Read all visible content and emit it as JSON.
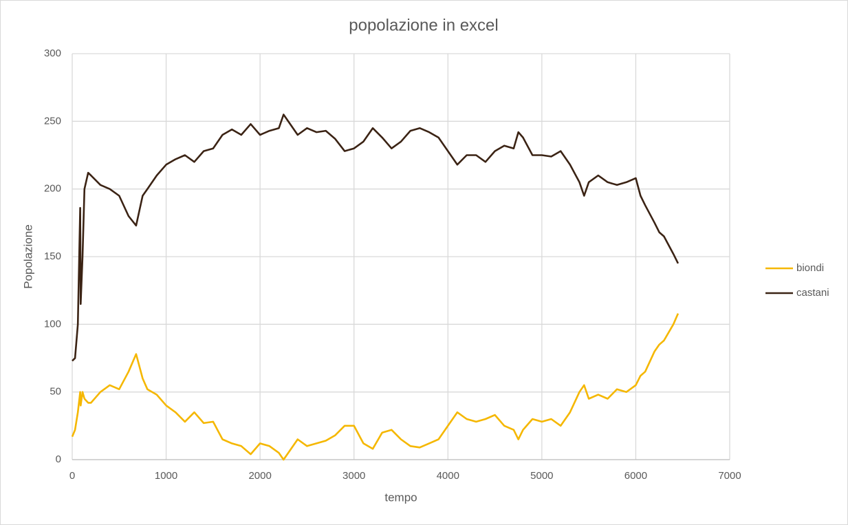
{
  "chart_data": {
    "type": "line",
    "title": "popolazione in excel",
    "x_label": "tempo",
    "y_label": "Popolazione",
    "x": [
      0,
      30,
      60,
      85,
      90,
      110,
      130,
      170,
      200,
      300,
      400,
      500,
      600,
      680,
      750,
      800,
      900,
      1000,
      1100,
      1200,
      1300,
      1400,
      1500,
      1600,
      1700,
      1800,
      1900,
      2000,
      2100,
      2200,
      2250,
      2300,
      2400,
      2500,
      2600,
      2700,
      2800,
      2900,
      3000,
      3100,
      3200,
      3300,
      3400,
      3500,
      3600,
      3700,
      3800,
      3900,
      4000,
      4100,
      4200,
      4300,
      4400,
      4500,
      4600,
      4700,
      4750,
      4800,
      4900,
      5000,
      5100,
      5200,
      5300,
      5400,
      5450,
      5500,
      5600,
      5700,
      5800,
      5900,
      6000,
      6050,
      6100,
      6200,
      6250,
      6300,
      6400,
      6450
    ],
    "series": [
      {
        "name": "biondi",
        "color": "#f5b700",
        "values": [
          17,
          22,
          35,
          50,
          40,
          50,
          45,
          42,
          42,
          50,
          55,
          52,
          65,
          78,
          60,
          52,
          48,
          40,
          35,
          28,
          35,
          27,
          28,
          15,
          12,
          10,
          4,
          12,
          10,
          5,
          0,
          5,
          15,
          10,
          12,
          14,
          18,
          25,
          25,
          12,
          8,
          20,
          22,
          15,
          10,
          9,
          12,
          15,
          25,
          35,
          30,
          28,
          30,
          33,
          25,
          22,
          15,
          22,
          30,
          28,
          30,
          25,
          35,
          50,
          55,
          45,
          48,
          45,
          52,
          50,
          55,
          62,
          65,
          80,
          85,
          88,
          100,
          108
        ]
      },
      {
        "name": "castani",
        "color": "#3b2314",
        "values": [
          73,
          75,
          100,
          186,
          115,
          150,
          200,
          212,
          210,
          203,
          200,
          195,
          180,
          173,
          195,
          200,
          210,
          218,
          222,
          225,
          220,
          228,
          230,
          240,
          244,
          240,
          248,
          240,
          243,
          245,
          255,
          250,
          240,
          245,
          242,
          243,
          237,
          228,
          230,
          235,
          245,
          238,
          230,
          235,
          243,
          245,
          242,
          238,
          228,
          218,
          225,
          225,
          220,
          228,
          232,
          230,
          242,
          238,
          225,
          225,
          224,
          228,
          218,
          205,
          195,
          205,
          210,
          205,
          203,
          205,
          208,
          195,
          188,
          175,
          168,
          165,
          152,
          145
        ]
      }
    ],
    "xlim": [
      0,
      7000
    ],
    "xticks": [
      0,
      1000,
      2000,
      3000,
      4000,
      5000,
      6000,
      7000
    ],
    "ylim": [
      0,
      300
    ],
    "yticks": [
      0,
      50,
      100,
      150,
      200,
      250,
      300
    ],
    "grid": true,
    "legend": "right"
  }
}
